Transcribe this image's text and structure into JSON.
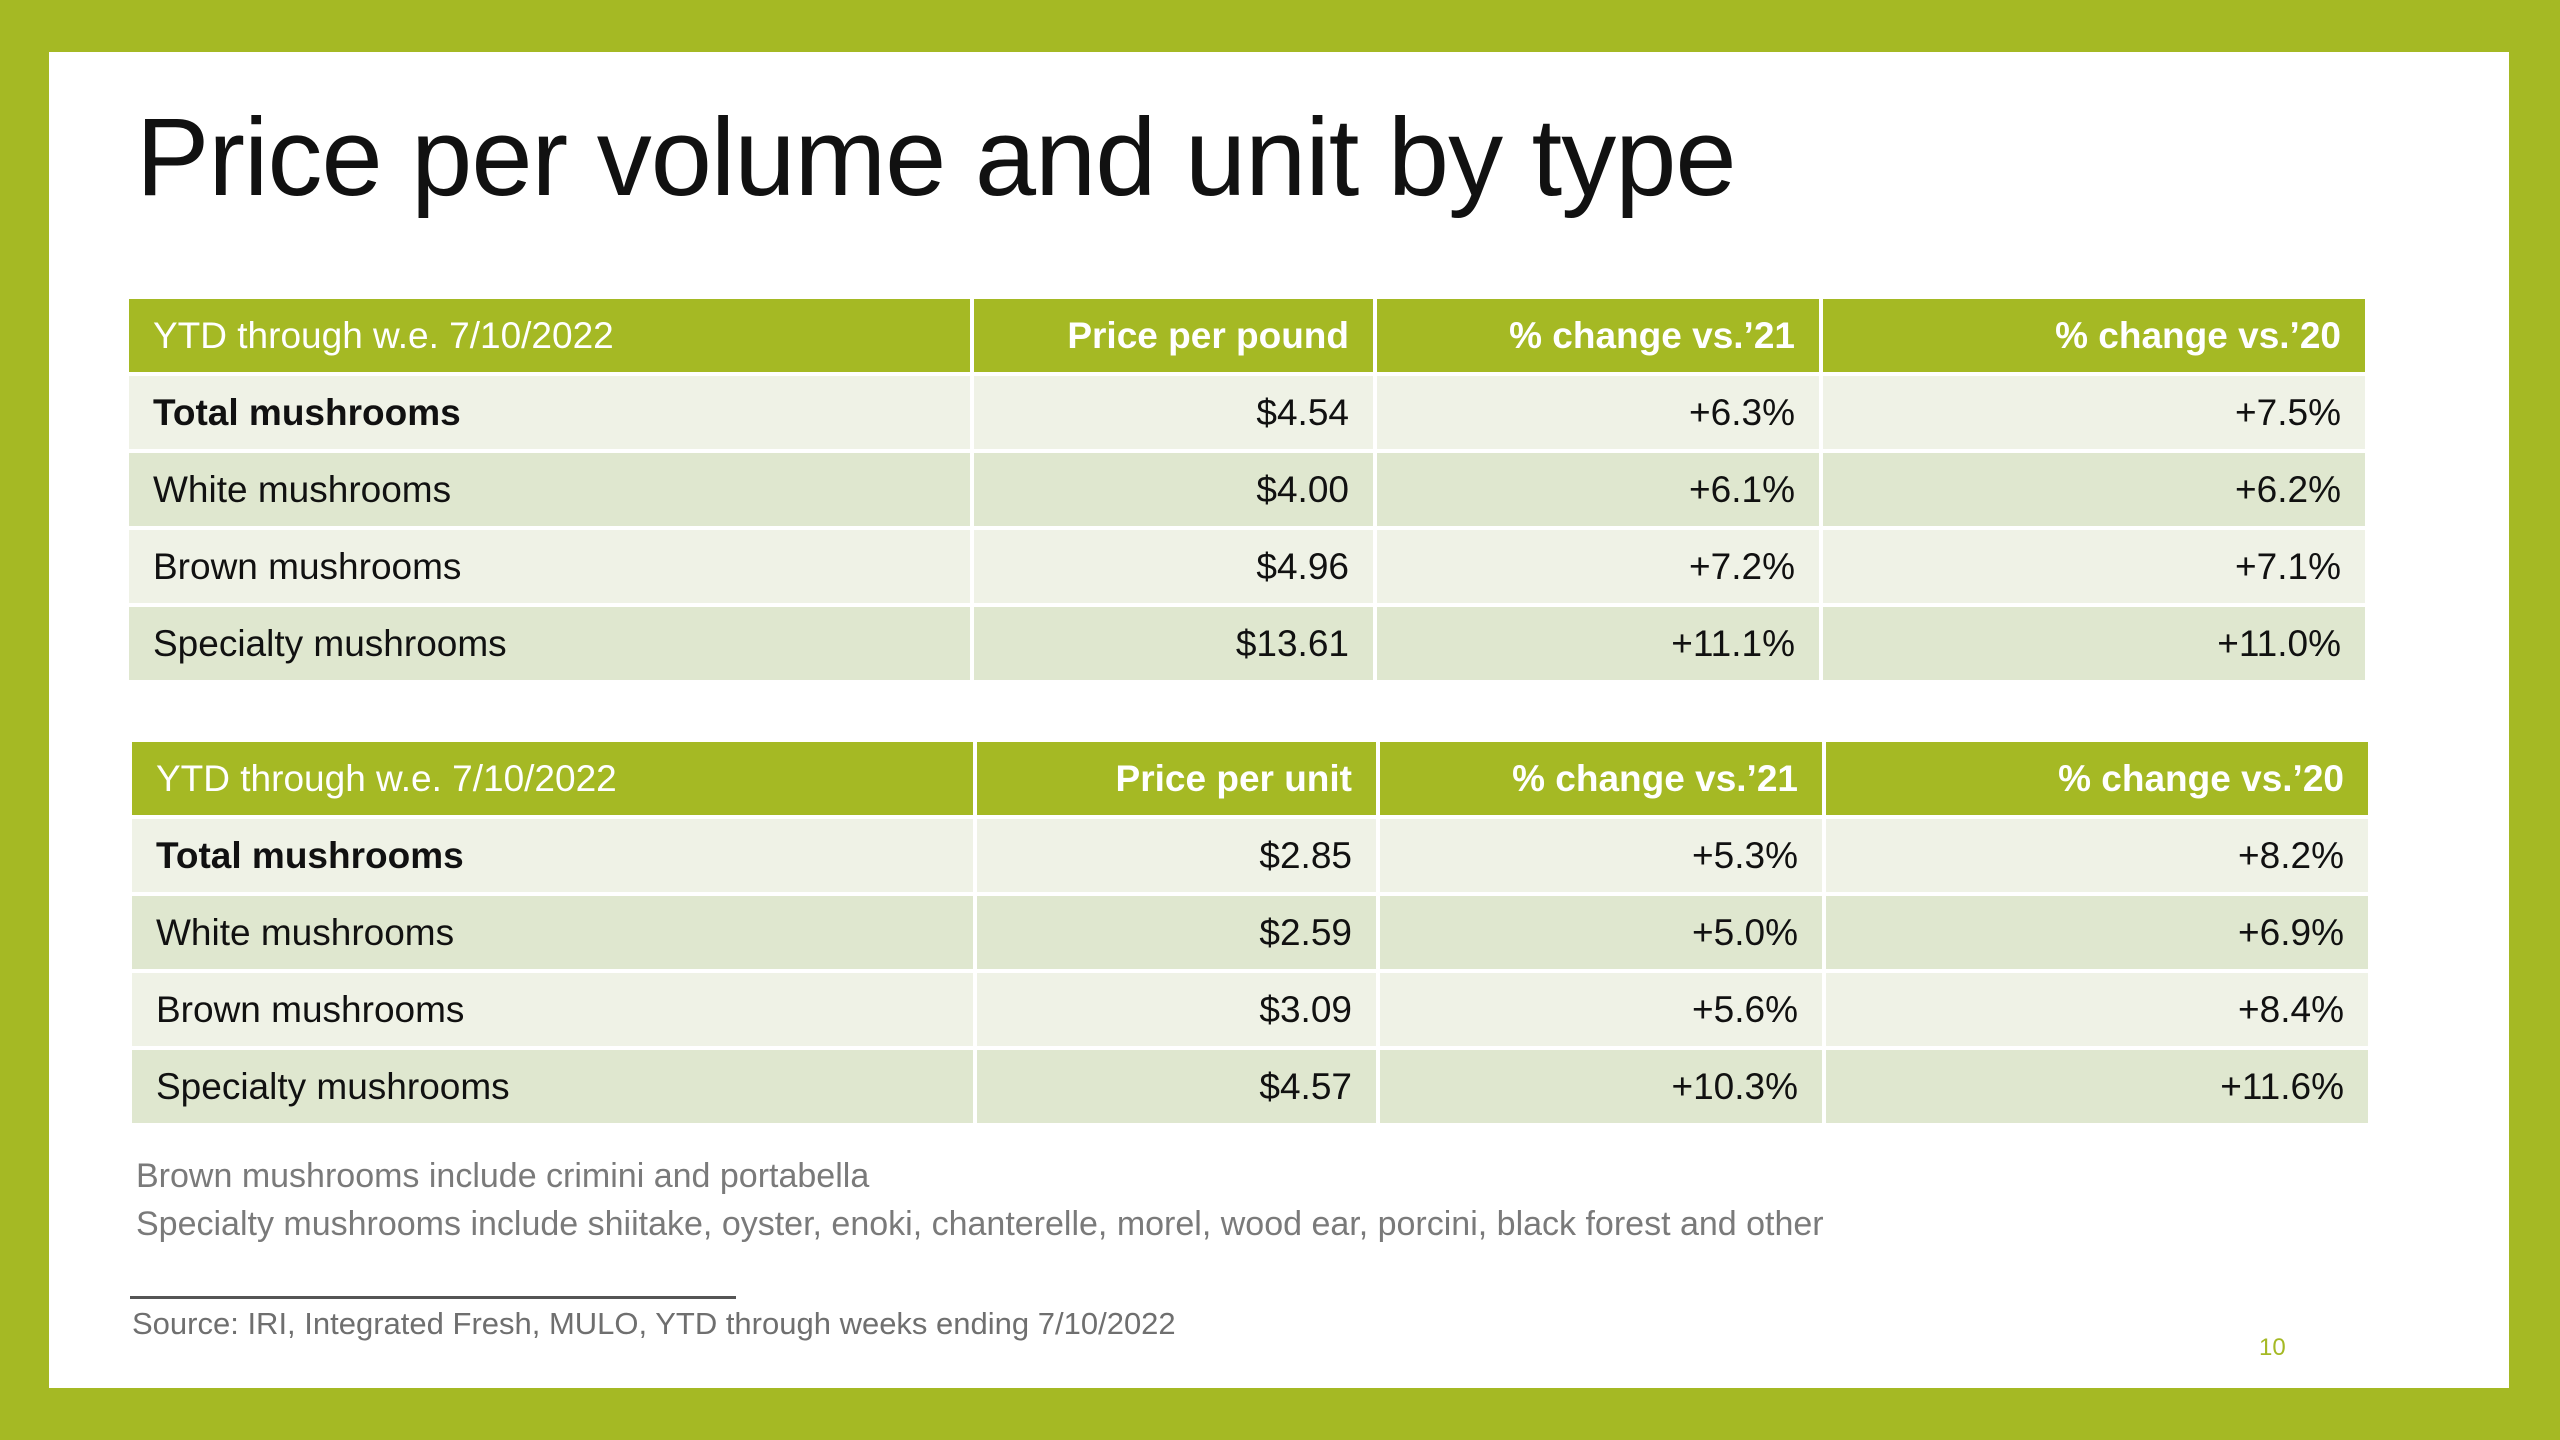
{
  "title": "Price per volume and unit by type",
  "table_pound": {
    "headers": [
      "YTD through w.e. 7/10/2022",
      "Price per pound",
      "% change vs.’21",
      "% change vs.’20"
    ],
    "rows": [
      [
        "Total mushrooms",
        "$4.54",
        "+6.3%",
        "+7.5%"
      ],
      [
        "White mushrooms",
        "$4.00",
        "+6.1%",
        "+6.2%"
      ],
      [
        "Brown mushrooms",
        "$4.96",
        "+7.2%",
        "+7.1%"
      ],
      [
        "Specialty mushrooms",
        "$13.61",
        "+11.1%",
        "+11.0%"
      ]
    ]
  },
  "table_unit": {
    "headers": [
      "YTD through w.e. 7/10/2022",
      "Price per unit",
      "% change vs.’21",
      "% change vs.’20"
    ],
    "rows": [
      [
        "Total mushrooms",
        "$2.85",
        "+5.3%",
        "+8.2%"
      ],
      [
        "White mushrooms",
        "$2.59",
        "+5.0%",
        "+6.9%"
      ],
      [
        "Brown mushrooms",
        "$3.09",
        "+5.6%",
        "+8.4%"
      ],
      [
        "Specialty mushrooms",
        "$4.57",
        "+10.3%",
        "+11.6%"
      ]
    ]
  },
  "notes": [
    "Brown mushrooms include crimini and portabella",
    "Specialty mushrooms include shiitake, oyster, enoki, chanterelle, morel, wood ear, porcini, black forest and other"
  ],
  "source": "Source: IRI, Integrated Fresh, MULO, YTD through weeks ending 7/10/2022",
  "page_number": "10",
  "colors": {
    "accent": "#a5b924",
    "row_light": "#eff2e6",
    "row_dark": "#dfe7cf"
  }
}
